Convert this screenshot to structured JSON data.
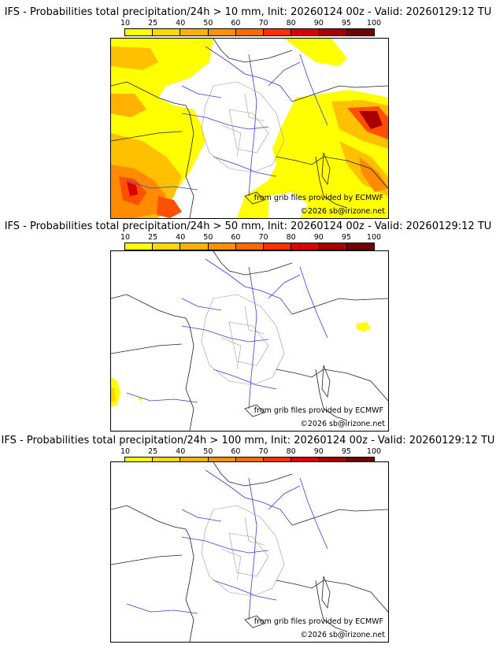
{
  "scale": {
    "labels": [
      "10",
      "25",
      "40",
      "50",
      "60",
      "70",
      "80",
      "90",
      "95",
      "100"
    ],
    "colors": [
      "#ffff00",
      "#ffd700",
      "#ffb000",
      "#ff9000",
      "#ff6a00",
      "#ff3000",
      "#d80000",
      "#a80000",
      "#700000"
    ]
  },
  "panels": [
    {
      "title": "IFS - Probabilities total precipitation/24h > 10 mm, Init: 20260124 00z - Valid: 20260129:12 TU",
      "credit1": "from grib files provided by ECMWF",
      "credit2": "©2026 sb@irizone.net"
    },
    {
      "title": "IFS - Probabilities total precipitation/24h > 50 mm, Init: 20260124 00z - Valid: 20260129:12 TU",
      "credit1": "from grib files provided by ECMWF",
      "credit2": "©2026 sb@irizone.net"
    },
    {
      "title": "IFS - Probabilities total precipitation/24h > 100 mm, Init: 20260124 00z - Valid: 20260129:12 TU",
      "credit1": "from grib files provided by ECMWF",
      "credit2": "©2026 sb@irizone.net"
    }
  ]
}
